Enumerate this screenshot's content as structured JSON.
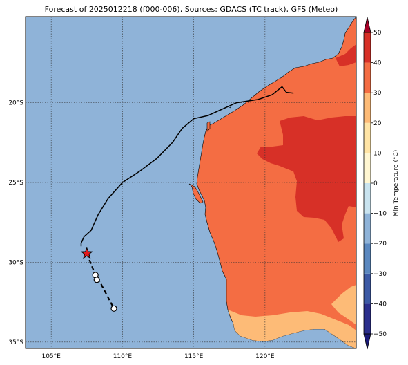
{
  "title": "Forecast of 2025012218 (f000-006), Sources: GDACS (TC track), GFS (Meteo)",
  "map": {
    "lon_range": [
      103.2,
      126.4
    ],
    "lat_range": [
      -35.4,
      -14.6
    ],
    "lon_ticks": [
      {
        "value": 105,
        "label": "105°E"
      },
      {
        "value": 110,
        "label": "110°E"
      },
      {
        "value": 115,
        "label": "115°E"
      },
      {
        "value": 120,
        "label": "120°E"
      }
    ],
    "lat_ticks": [
      {
        "value": -20,
        "label": "20°S"
      },
      {
        "value": -25,
        "label": "25°S"
      },
      {
        "value": -30,
        "label": "30°S"
      },
      {
        "value": -35,
        "label": "35°S"
      }
    ],
    "gridlines": true,
    "ocean_color": "#8fb3d8"
  },
  "track": {
    "past": [
      [
        122.0,
        -19.4
      ],
      [
        121.5,
        -19.35
      ],
      [
        121.2,
        -19.0
      ],
      [
        120.5,
        -19.5
      ],
      [
        119.5,
        -19.8
      ],
      [
        118.0,
        -20.0
      ],
      [
        116.0,
        -20.8
      ],
      [
        115.0,
        -21.0
      ],
      [
        114.2,
        -21.6
      ],
      [
        113.5,
        -22.5
      ],
      [
        112.4,
        -23.5
      ],
      [
        111.2,
        -24.3
      ],
      [
        110.0,
        -25.0
      ],
      [
        109.0,
        -26.0
      ],
      [
        108.3,
        -27.0
      ],
      [
        108.0,
        -27.6
      ],
      [
        107.8,
        -28.0
      ],
      [
        107.3,
        -28.4
      ],
      [
        107.1,
        -28.8
      ],
      [
        107.1,
        -29.0
      ]
    ],
    "forecast": [
      [
        107.5,
        -29.45
      ],
      [
        108.1,
        -30.8
      ],
      [
        108.2,
        -31.1
      ],
      [
        108.4,
        -31.2
      ],
      [
        109.4,
        -32.9
      ]
    ],
    "current": {
      "lon": 107.5,
      "lat": -29.45,
      "color": "#e41a1c"
    },
    "forecast_points": [
      [
        108.1,
        -30.8
      ],
      [
        108.2,
        -31.1
      ],
      [
        109.4,
        -32.9
      ]
    ]
  },
  "colorbar": {
    "label": "Min Temperature (°C)",
    "ticks": [
      "50",
      "40",
      "30",
      "20",
      "10",
      "0",
      "−10",
      "−20",
      "−30",
      "−40",
      "−50"
    ],
    "levels": [
      -50,
      -40,
      -30,
      -20,
      -10,
      0,
      10,
      20,
      30,
      40,
      50
    ],
    "colors": [
      "#313695",
      "#4575b4",
      "#74add1",
      "#abd9e9",
      "#e0f3f8",
      "#ffffbf",
      "#fee090",
      "#fdae61",
      "#f46d43",
      "#d73027",
      "#a50026"
    ],
    "band_colors": [
      "#2b2f8c",
      "#3c5aa5",
      "#5b88bf",
      "#8fb3d8",
      "#c9e3ef",
      "#fff6d2",
      "#ffe4a6",
      "#fdbb77",
      "#f46d43",
      "#d73027",
      "#a50026"
    ]
  }
}
